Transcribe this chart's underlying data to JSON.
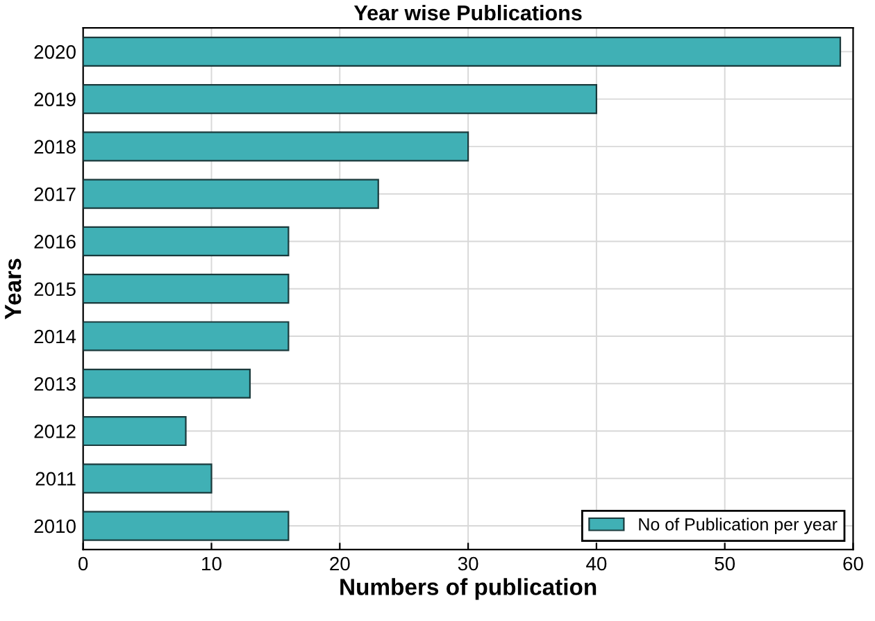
{
  "chart_data": {
    "type": "bar",
    "orientation": "horizontal",
    "title": "Year wise Publications",
    "xlabel": "Numbers of publication",
    "ylabel": "Years",
    "categories": [
      "2020",
      "2019",
      "2018",
      "2017",
      "2016",
      "2015",
      "2014",
      "2013",
      "2012",
      "2011",
      "2010"
    ],
    "series": [
      {
        "name": "No of Publication per year",
        "color": "#40b0b5",
        "values": [
          59,
          40,
          30,
          23,
          16,
          16,
          16,
          13,
          8,
          10,
          16
        ]
      }
    ],
    "xlim": [
      0,
      60
    ],
    "xticks": [
      0,
      10,
      20,
      30,
      40,
      50,
      60
    ],
    "grid": true,
    "legend": "bottom right"
  }
}
